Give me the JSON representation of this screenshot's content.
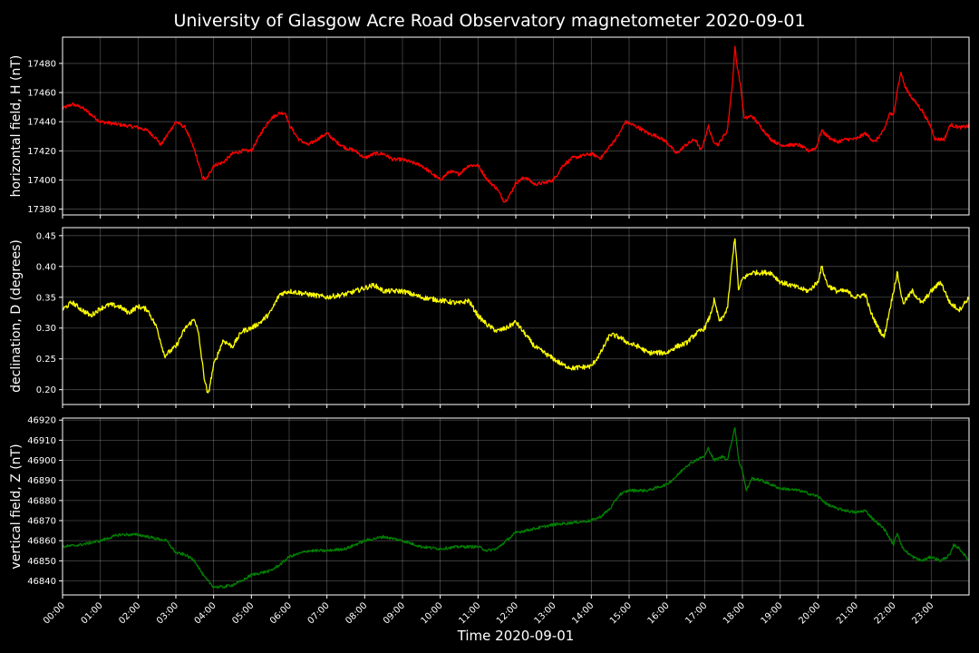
{
  "chart_data": {
    "type": "line",
    "title": "University of Glasgow Acre Road Observatory magnetometer 2020-09-01",
    "xlabel": "Time 2020-09-01",
    "x_tick_labels": [
      "00:00",
      "01:00",
      "02:00",
      "03:00",
      "04:00",
      "05:00",
      "06:00",
      "07:00",
      "08:00",
      "09:00",
      "10:00",
      "11:00",
      "12:00",
      "13:00",
      "14:00",
      "15:00",
      "16:00",
      "17:00",
      "18:00",
      "19:00",
      "20:00",
      "21:00",
      "22:00",
      "23:00"
    ],
    "xlim_hours": [
      0,
      24
    ],
    "grid": true,
    "panels": [
      {
        "ylabel": "horizontal field, H (nT)",
        "color": "#ff0000",
        "ylim": [
          17376,
          17498
        ],
        "yticks": [
          17380,
          17400,
          17420,
          17440,
          17460,
          17480
        ],
        "tick_decimals": 0,
        "noise": 1.2,
        "points": [
          [
            0,
            17449
          ],
          [
            0.25,
            17452
          ],
          [
            0.5,
            17450
          ],
          [
            0.75,
            17445
          ],
          [
            1,
            17440
          ],
          [
            1.5,
            17438
          ],
          [
            2,
            17436
          ],
          [
            2.25,
            17434
          ],
          [
            2.5,
            17428
          ],
          [
            2.6,
            17424
          ],
          [
            2.75,
            17430
          ],
          [
            3,
            17440
          ],
          [
            3.25,
            17436
          ],
          [
            3.5,
            17420
          ],
          [
            3.7,
            17402
          ],
          [
            3.8,
            17400
          ],
          [
            4,
            17410
          ],
          [
            4.25,
            17412
          ],
          [
            4.5,
            17418
          ],
          [
            4.75,
            17420
          ],
          [
            5,
            17420
          ],
          [
            5.25,
            17432
          ],
          [
            5.5,
            17442
          ],
          [
            5.75,
            17446
          ],
          [
            5.9,
            17446
          ],
          [
            6,
            17438
          ],
          [
            6.25,
            17428
          ],
          [
            6.5,
            17424
          ],
          [
            6.75,
            17428
          ],
          [
            7,
            17432
          ],
          [
            7.25,
            17426
          ],
          [
            7.5,
            17422
          ],
          [
            7.75,
            17420
          ],
          [
            8,
            17415
          ],
          [
            8.25,
            17418
          ],
          [
            8.5,
            17418
          ],
          [
            8.75,
            17414
          ],
          [
            9,
            17414
          ],
          [
            9.5,
            17410
          ],
          [
            10,
            17400
          ],
          [
            10.25,
            17406
          ],
          [
            10.5,
            17404
          ],
          [
            10.75,
            17410
          ],
          [
            11,
            17410
          ],
          [
            11.25,
            17400
          ],
          [
            11.5,
            17394
          ],
          [
            11.7,
            17385
          ],
          [
            11.85,
            17390
          ],
          [
            12,
            17398
          ],
          [
            12.25,
            17402
          ],
          [
            12.5,
            17397
          ],
          [
            12.75,
            17398
          ],
          [
            13,
            17400
          ],
          [
            13.25,
            17410
          ],
          [
            13.5,
            17415
          ],
          [
            14,
            17418
          ],
          [
            14.25,
            17415
          ],
          [
            14.4,
            17420
          ],
          [
            14.75,
            17432
          ],
          [
            14.9,
            17440
          ],
          [
            15.25,
            17436
          ],
          [
            15.5,
            17432
          ],
          [
            15.75,
            17430
          ],
          [
            16,
            17426
          ],
          [
            16.25,
            17418
          ],
          [
            16.5,
            17424
          ],
          [
            16.75,
            17428
          ],
          [
            16.9,
            17420
          ],
          [
            17,
            17428
          ],
          [
            17.1,
            17437
          ],
          [
            17.2,
            17428
          ],
          [
            17.35,
            17424
          ],
          [
            17.5,
            17430
          ],
          [
            17.6,
            17434
          ],
          [
            17.75,
            17470
          ],
          [
            17.8,
            17492
          ],
          [
            17.85,
            17480
          ],
          [
            17.95,
            17465
          ],
          [
            18.05,
            17442
          ],
          [
            18.25,
            17444
          ],
          [
            18.5,
            17436
          ],
          [
            18.75,
            17428
          ],
          [
            19,
            17424
          ],
          [
            19.5,
            17424
          ],
          [
            19.75,
            17420
          ],
          [
            19.95,
            17422
          ],
          [
            20.1,
            17434
          ],
          [
            20.25,
            17430
          ],
          [
            20.5,
            17426
          ],
          [
            20.75,
            17428
          ],
          [
            21,
            17428
          ],
          [
            21.25,
            17432
          ],
          [
            21.5,
            17426
          ],
          [
            21.75,
            17434
          ],
          [
            21.9,
            17446
          ],
          [
            22,
            17444
          ],
          [
            22.1,
            17462
          ],
          [
            22.2,
            17474
          ],
          [
            22.3,
            17464
          ],
          [
            22.5,
            17456
          ],
          [
            22.75,
            17448
          ],
          [
            23,
            17436
          ],
          [
            23.1,
            17428
          ],
          [
            23.35,
            17428
          ],
          [
            23.5,
            17438
          ],
          [
            23.75,
            17436
          ],
          [
            24,
            17437
          ]
        ]
      },
      {
        "ylabel": "declination, D (degrees)",
        "color": "#ffff00",
        "ylim": [
          0.176,
          0.463
        ],
        "yticks": [
          0.2,
          0.25,
          0.3,
          0.35,
          0.4,
          0.45
        ],
        "tick_decimals": 2,
        "noise": 0.004,
        "points": [
          [
            0,
            0.33
          ],
          [
            0.25,
            0.342
          ],
          [
            0.5,
            0.33
          ],
          [
            0.75,
            0.32
          ],
          [
            1,
            0.332
          ],
          [
            1.25,
            0.338
          ],
          [
            1.5,
            0.335
          ],
          [
            1.75,
            0.325
          ],
          [
            2,
            0.335
          ],
          [
            2.25,
            0.33
          ],
          [
            2.5,
            0.3
          ],
          [
            2.7,
            0.255
          ],
          [
            3,
            0.27
          ],
          [
            3.25,
            0.3
          ],
          [
            3.5,
            0.315
          ],
          [
            3.6,
            0.29
          ],
          [
            3.75,
            0.22
          ],
          [
            3.85,
            0.19
          ],
          [
            4,
            0.24
          ],
          [
            4.25,
            0.28
          ],
          [
            4.5,
            0.27
          ],
          [
            4.75,
            0.295
          ],
          [
            5,
            0.3
          ],
          [
            5.25,
            0.31
          ],
          [
            5.5,
            0.325
          ],
          [
            5.75,
            0.355
          ],
          [
            6,
            0.36
          ],
          [
            6.5,
            0.355
          ],
          [
            7,
            0.35
          ],
          [
            7.5,
            0.355
          ],
          [
            8,
            0.365
          ],
          [
            8.25,
            0.37
          ],
          [
            8.5,
            0.36
          ],
          [
            9,
            0.36
          ],
          [
            9.5,
            0.35
          ],
          [
            10,
            0.345
          ],
          [
            10.5,
            0.34
          ],
          [
            10.75,
            0.345
          ],
          [
            11,
            0.32
          ],
          [
            11.25,
            0.305
          ],
          [
            11.5,
            0.295
          ],
          [
            11.75,
            0.3
          ],
          [
            12,
            0.31
          ],
          [
            12.25,
            0.29
          ],
          [
            12.5,
            0.27
          ],
          [
            12.75,
            0.26
          ],
          [
            13,
            0.25
          ],
          [
            13.25,
            0.24
          ],
          [
            13.5,
            0.235
          ],
          [
            14,
            0.238
          ],
          [
            14.25,
            0.26
          ],
          [
            14.5,
            0.29
          ],
          [
            14.75,
            0.285
          ],
          [
            15,
            0.275
          ],
          [
            15.25,
            0.27
          ],
          [
            15.5,
            0.26
          ],
          [
            16,
            0.26
          ],
          [
            16.25,
            0.27
          ],
          [
            16.5,
            0.275
          ],
          [
            16.75,
            0.29
          ],
          [
            17,
            0.3
          ],
          [
            17.15,
            0.32
          ],
          [
            17.25,
            0.345
          ],
          [
            17.4,
            0.31
          ],
          [
            17.6,
            0.33
          ],
          [
            17.75,
            0.42
          ],
          [
            17.8,
            0.45
          ],
          [
            17.9,
            0.36
          ],
          [
            18,
            0.38
          ],
          [
            18.25,
            0.39
          ],
          [
            18.5,
            0.39
          ],
          [
            18.75,
            0.39
          ],
          [
            19,
            0.375
          ],
          [
            19.25,
            0.37
          ],
          [
            19.5,
            0.365
          ],
          [
            19.75,
            0.36
          ],
          [
            20,
            0.375
          ],
          [
            20.1,
            0.4
          ],
          [
            20.25,
            0.37
          ],
          [
            20.5,
            0.36
          ],
          [
            20.75,
            0.36
          ],
          [
            21,
            0.35
          ],
          [
            21.25,
            0.355
          ],
          [
            21.4,
            0.325
          ],
          [
            21.6,
            0.3
          ],
          [
            21.75,
            0.285
          ],
          [
            22,
            0.36
          ],
          [
            22.1,
            0.39
          ],
          [
            22.25,
            0.34
          ],
          [
            22.5,
            0.36
          ],
          [
            22.75,
            0.34
          ],
          [
            23,
            0.36
          ],
          [
            23.25,
            0.375
          ],
          [
            23.5,
            0.34
          ],
          [
            23.75,
            0.33
          ],
          [
            24,
            0.35
          ]
        ]
      },
      {
        "ylabel": "vertical field, Z (nT)",
        "color": "#008000",
        "ylim": [
          46833,
          46921
        ],
        "yticks": [
          46840,
          46850,
          46860,
          46870,
          46880,
          46890,
          46900,
          46910,
          46920
        ],
        "tick_decimals": 0,
        "noise": 0.7,
        "points": [
          [
            0,
            46857
          ],
          [
            0.5,
            46858
          ],
          [
            1,
            46860
          ],
          [
            1.5,
            46863
          ],
          [
            2,
            46863
          ],
          [
            2.5,
            46861
          ],
          [
            2.75,
            46860
          ],
          [
            3,
            46854
          ],
          [
            3.25,
            46853
          ],
          [
            3.5,
            46850
          ],
          [
            3.75,
            46842
          ],
          [
            4,
            46837
          ],
          [
            4.25,
            46837
          ],
          [
            4.5,
            46838
          ],
          [
            4.75,
            46840
          ],
          [
            5,
            46843
          ],
          [
            5.5,
            46845
          ],
          [
            5.75,
            46848
          ],
          [
            6,
            46852
          ],
          [
            6.5,
            46855
          ],
          [
            7,
            46855
          ],
          [
            7.5,
            46856
          ],
          [
            8,
            46860
          ],
          [
            8.5,
            46862
          ],
          [
            9,
            46860
          ],
          [
            9.5,
            46857
          ],
          [
            10,
            46856
          ],
          [
            10.5,
            46857
          ],
          [
            11,
            46857
          ],
          [
            11.25,
            46855
          ],
          [
            11.5,
            46856
          ],
          [
            11.75,
            46860
          ],
          [
            12,
            46864
          ],
          [
            12.5,
            46866
          ],
          [
            13,
            46868
          ],
          [
            13.5,
            46869
          ],
          [
            14,
            46870
          ],
          [
            14.25,
            46872
          ],
          [
            14.5,
            46876
          ],
          [
            14.75,
            46883
          ],
          [
            15,
            46885
          ],
          [
            15.5,
            46885
          ],
          [
            16,
            46888
          ],
          [
            16.25,
            46892
          ],
          [
            16.5,
            46897
          ],
          [
            16.75,
            46900
          ],
          [
            17,
            46902
          ],
          [
            17.1,
            46906
          ],
          [
            17.25,
            46900
          ],
          [
            17.5,
            46902
          ],
          [
            17.6,
            46900
          ],
          [
            17.75,
            46912
          ],
          [
            17.8,
            46917
          ],
          [
            17.9,
            46900
          ],
          [
            18,
            46895
          ],
          [
            18.1,
            46885
          ],
          [
            18.25,
            46891
          ],
          [
            18.5,
            46890
          ],
          [
            18.75,
            46888
          ],
          [
            19,
            46886
          ],
          [
            19.5,
            46885
          ],
          [
            20,
            46882
          ],
          [
            20.25,
            46878
          ],
          [
            20.5,
            46876
          ],
          [
            21,
            46874
          ],
          [
            21.25,
            46875
          ],
          [
            21.5,
            46870
          ],
          [
            21.75,
            46866
          ],
          [
            22,
            46858
          ],
          [
            22.1,
            46864
          ],
          [
            22.25,
            46856
          ],
          [
            22.5,
            46852
          ],
          [
            22.75,
            46850
          ],
          [
            23,
            46852
          ],
          [
            23.25,
            46850
          ],
          [
            23.5,
            46853
          ],
          [
            23.6,
            46858
          ],
          [
            23.75,
            46856
          ],
          [
            24,
            46850
          ]
        ]
      }
    ]
  }
}
